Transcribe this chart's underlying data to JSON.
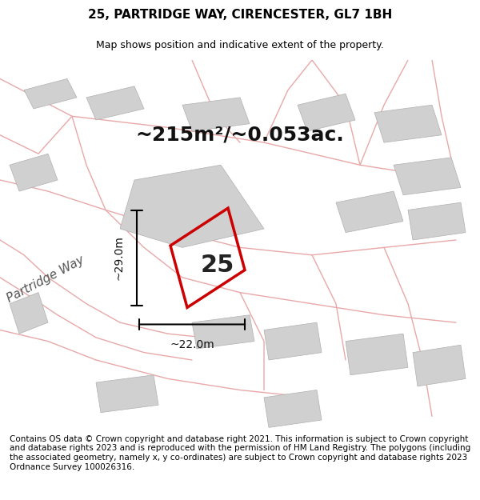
{
  "title": "25, PARTRIDGE WAY, CIRENCESTER, GL7 1BH",
  "subtitle": "Map shows position and indicative extent of the property.",
  "area_text": "~215m²/~0.053ac.",
  "label_25": "25",
  "dim_height": "~29.0m",
  "dim_width": "~22.0m",
  "street_label": "Partridge Way",
  "footer": "Contains OS data © Crown copyright and database right 2021. This information is subject to Crown copyright and database rights 2023 and is reproduced with the permission of HM Land Registry. The polygons (including the associated geometry, namely x, y co-ordinates) are subject to Crown copyright and database rights 2023 Ordnance Survey 100026316.",
  "bg_color": "#f5f0f0",
  "map_bg": "#f5f0f0",
  "plot_outline_color": "#cc0000",
  "building_fill": "#d8d8d8",
  "road_color": "#f0e8e8",
  "road_outline": "#e8a0a0",
  "title_fontsize": 11,
  "subtitle_fontsize": 9,
  "area_fontsize": 18,
  "label_fontsize": 22,
  "dim_fontsize": 10,
  "footer_fontsize": 7.5
}
